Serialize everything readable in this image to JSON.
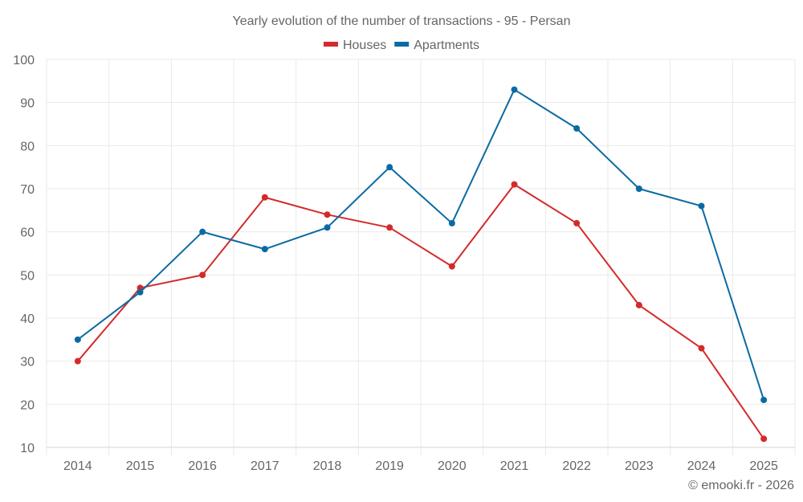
{
  "chart_data": {
    "type": "line",
    "title": "Yearly evolution of the number of transactions - 95 - Persan",
    "xlabel": "",
    "ylabel": "",
    "categories": [
      "2014",
      "2015",
      "2016",
      "2017",
      "2018",
      "2019",
      "2020",
      "2021",
      "2022",
      "2023",
      "2024",
      "2025"
    ],
    "ylim": [
      10,
      100
    ],
    "yticks": [
      10,
      20,
      30,
      40,
      50,
      60,
      70,
      80,
      90,
      100
    ],
    "grid": true,
    "legend_position": "top-center",
    "series": [
      {
        "name": "Houses",
        "color": "#d42a2a",
        "values": [
          30,
          47,
          50,
          68,
          64,
          61,
          52,
          71,
          62,
          43,
          33,
          12
        ]
      },
      {
        "name": "Apartments",
        "color": "#0b6aa2",
        "values": [
          35,
          46,
          60,
          56,
          61,
          75,
          62,
          93,
          84,
          70,
          66,
          21
        ]
      }
    ],
    "credit": "© emooki.fr - 2026"
  }
}
